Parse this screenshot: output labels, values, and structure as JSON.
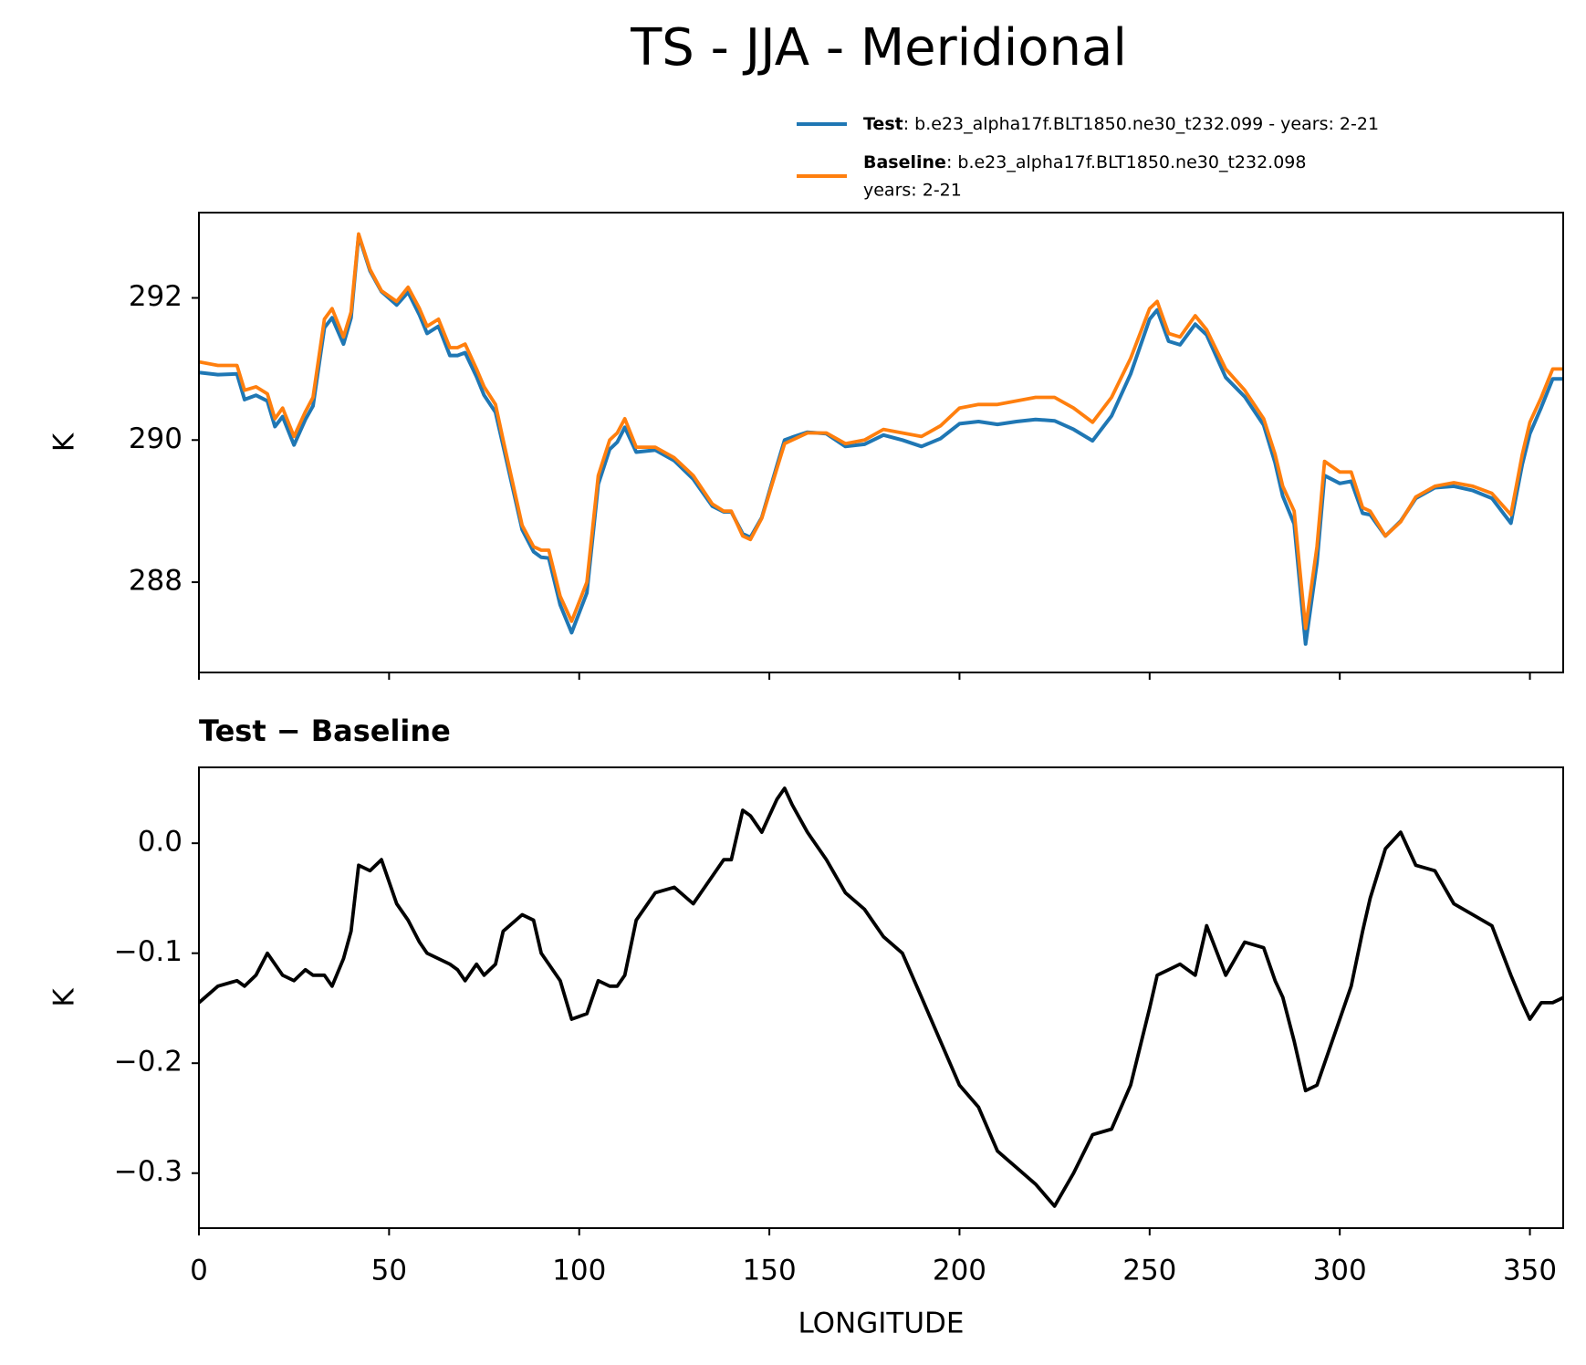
{
  "chart_data": [
    {
      "type": "line",
      "title": "TS - JJA - Meridional",
      "ylabel": "K",
      "x": [
        0,
        5,
        10,
        12,
        15,
        18,
        20,
        22,
        25,
        28,
        30,
        33,
        35,
        38,
        40,
        42,
        45,
        48,
        52,
        55,
        58,
        60,
        63,
        66,
        68,
        70,
        73,
        75,
        78,
        80,
        85,
        88,
        90,
        92,
        95,
        98,
        102,
        105,
        108,
        110,
        112,
        115,
        120,
        125,
        130,
        135,
        138,
        140,
        143,
        145,
        148,
        152,
        154,
        156,
        160,
        165,
        170,
        175,
        180,
        185,
        190,
        195,
        200,
        205,
        210,
        215,
        220,
        225,
        230,
        235,
        240,
        245,
        250,
        252,
        255,
        258,
        262,
        265,
        270,
        275,
        280,
        283,
        285,
        288,
        290,
        291,
        294,
        296,
        300,
        303,
        306,
        308,
        312,
        316,
        320,
        325,
        330,
        335,
        340,
        345,
        348,
        350,
        353,
        356,
        359
      ],
      "series": [
        {
          "name": "Test",
          "description": [
            ": b.e23_alpha17f.BLT1850.ne30_t232.099 - years: 2-21"
          ],
          "color": "#1f77b4",
          "values": [
            290.95,
            290.92,
            290.93,
            290.57,
            290.63,
            290.55,
            290.19,
            290.33,
            289.93,
            290.29,
            290.48,
            291.58,
            291.72,
            291.35,
            291.72,
            292.88,
            292.38,
            292.09,
            291.9,
            292.08,
            291.76,
            291.5,
            291.6,
            291.19,
            291.19,
            291.23,
            290.89,
            290.63,
            290.39,
            289.92,
            288.74,
            288.43,
            288.35,
            288.34,
            287.68,
            287.29,
            287.85,
            289.38,
            289.87,
            289.97,
            290.18,
            289.83,
            289.86,
            289.71,
            289.45,
            289.07,
            288.99,
            288.99,
            288.68,
            288.63,
            288.91,
            289.64,
            290.0,
            290.04,
            290.11,
            290.09,
            289.91,
            289.94,
            290.07,
            290.0,
            289.91,
            290.02,
            290.23,
            290.26,
            290.22,
            290.26,
            290.29,
            290.27,
            290.15,
            289.99,
            290.34,
            290.93,
            291.7,
            291.83,
            291.39,
            291.34,
            291.63,
            291.48,
            290.88,
            290.61,
            290.21,
            289.68,
            289.21,
            288.82,
            287.69,
            287.13,
            288.28,
            289.5,
            289.39,
            289.42,
            288.97,
            288.95,
            288.65,
            288.86,
            289.18,
            289.33,
            289.35,
            289.29,
            289.18,
            288.83,
            289.66,
            290.09,
            290.46,
            290.86,
            290.86
          ]
        },
        {
          "name": "Baseline",
          "description": [
            ": b.e23_alpha17f.BLT1850.ne30_t232.098",
            "years: 2-21"
          ],
          "color": "#ff7f0e",
          "values": [
            291.1,
            291.05,
            291.05,
            290.7,
            290.75,
            290.65,
            290.3,
            290.45,
            290.05,
            290.4,
            290.6,
            291.7,
            291.85,
            291.45,
            291.8,
            292.9,
            292.4,
            292.1,
            291.95,
            292.15,
            291.85,
            291.6,
            291.7,
            291.3,
            291.3,
            291.35,
            291.0,
            290.75,
            290.5,
            290.0,
            288.8,
            288.5,
            288.45,
            288.45,
            287.8,
            287.45,
            288.0,
            289.5,
            290.0,
            290.1,
            290.3,
            289.9,
            289.9,
            289.75,
            289.5,
            289.1,
            289.0,
            289.0,
            288.65,
            288.6,
            288.9,
            289.6,
            289.95,
            290.0,
            290.1,
            290.1,
            289.95,
            290.0,
            290.15,
            290.1,
            290.05,
            290.2,
            290.45,
            290.5,
            290.5,
            290.55,
            290.6,
            290.6,
            290.45,
            290.25,
            290.6,
            291.15,
            291.85,
            291.95,
            291.5,
            291.45,
            291.75,
            291.55,
            291.0,
            290.7,
            290.3,
            289.8,
            289.35,
            289.0,
            287.9,
            287.35,
            288.5,
            289.7,
            289.55,
            289.55,
            289.05,
            289.0,
            288.65,
            288.85,
            289.2,
            289.35,
            289.4,
            289.35,
            289.25,
            288.95,
            289.8,
            290.25,
            290.6,
            291.0,
            291.0
          ]
        }
      ],
      "xlim": [
        0,
        358.75
      ],
      "xticks": [
        0,
        50,
        100,
        150,
        200,
        250,
        300,
        350
      ],
      "xticklabels": false,
      "ylim": [
        286.73,
        293.2
      ],
      "yticks": [
        288,
        290,
        292
      ]
    },
    {
      "type": "line",
      "title": "Test − Baseline",
      "ylabel": "K",
      "xlabel": "LONGITUDE",
      "x": [
        0,
        5,
        10,
        12,
        15,
        18,
        20,
        22,
        25,
        28,
        30,
        33,
        35,
        38,
        40,
        42,
        45,
        48,
        52,
        55,
        58,
        60,
        63,
        66,
        68,
        70,
        73,
        75,
        78,
        80,
        85,
        88,
        90,
        92,
        95,
        98,
        102,
        105,
        108,
        110,
        112,
        115,
        120,
        125,
        130,
        135,
        138,
        140,
        143,
        145,
        148,
        152,
        154,
        156,
        160,
        165,
        170,
        175,
        180,
        185,
        190,
        195,
        200,
        205,
        210,
        215,
        220,
        225,
        230,
        235,
        240,
        245,
        250,
        252,
        255,
        258,
        262,
        265,
        270,
        275,
        280,
        283,
        285,
        288,
        290,
        291,
        294,
        296,
        300,
        303,
        306,
        308,
        312,
        316,
        320,
        325,
        330,
        335,
        340,
        345,
        348,
        350,
        353,
        356,
        359
      ],
      "series": [
        {
          "color": "#000000",
          "values": [
            -0.145,
            -0.13,
            -0.125,
            -0.13,
            -0.12,
            -0.1,
            -0.11,
            -0.12,
            -0.125,
            -0.115,
            -0.12,
            -0.12,
            -0.13,
            -0.105,
            -0.08,
            -0.02,
            -0.025,
            -0.015,
            -0.055,
            -0.07,
            -0.09,
            -0.1,
            -0.105,
            -0.11,
            -0.115,
            -0.125,
            -0.11,
            -0.12,
            -0.11,
            -0.08,
            -0.065,
            -0.07,
            -0.1,
            -0.11,
            -0.125,
            -0.16,
            -0.155,
            -0.125,
            -0.13,
            -0.13,
            -0.12,
            -0.07,
            -0.045,
            -0.04,
            -0.055,
            -0.03,
            -0.015,
            -0.015,
            0.03,
            0.025,
            0.01,
            0.04,
            0.05,
            0.035,
            0.01,
            -0.015,
            -0.045,
            -0.06,
            -0.085,
            -0.1,
            -0.14,
            -0.18,
            -0.22,
            -0.24,
            -0.28,
            -0.295,
            -0.31,
            -0.33,
            -0.3,
            -0.265,
            -0.26,
            -0.22,
            -0.15,
            -0.12,
            -0.115,
            -0.11,
            -0.12,
            -0.075,
            -0.12,
            -0.09,
            -0.095,
            -0.125,
            -0.14,
            -0.18,
            -0.21,
            -0.225,
            -0.22,
            -0.2,
            -0.16,
            -0.13,
            -0.08,
            -0.05,
            -0.005,
            0.01,
            -0.02,
            -0.025,
            -0.055,
            -0.065,
            -0.075,
            -0.12,
            -0.145,
            -0.16,
            -0.145,
            -0.145,
            -0.14
          ]
        }
      ],
      "xlim": [
        0,
        358.75
      ],
      "xticks": [
        0,
        50,
        100,
        150,
        200,
        250,
        300,
        350
      ],
      "ylim": [
        -0.35,
        0.069
      ],
      "yticks": [
        {
          "value": -0.3,
          "label": "−0.3"
        },
        {
          "value": -0.2,
          "label": "−0.2"
        },
        {
          "value": -0.1,
          "label": "−0.1"
        },
        {
          "value": 0,
          "label": "0.0"
        }
      ]
    }
  ]
}
